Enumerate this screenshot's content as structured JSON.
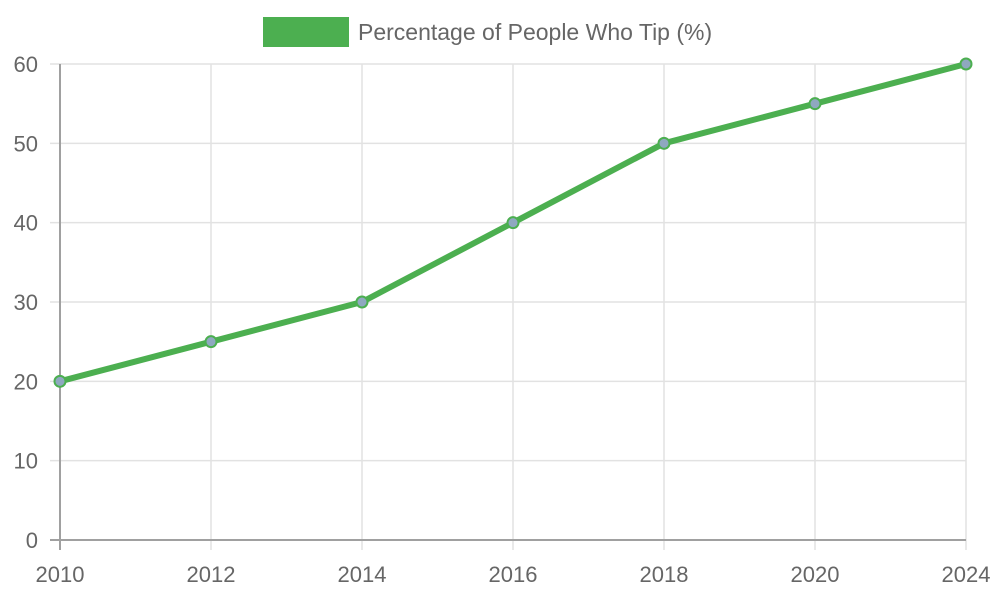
{
  "chart_data": {
    "type": "line",
    "title": "",
    "categories": [
      "2010",
      "2012",
      "2014",
      "2016",
      "2018",
      "2020",
      "2024"
    ],
    "series": [
      {
        "name": "Percentage of People Who Tip (%)",
        "values": [
          20,
          25,
          30,
          40,
          50,
          55,
          60
        ],
        "color": "#4caf50",
        "point_fill": "#8fa8c0"
      }
    ],
    "xlabel": "",
    "ylabel": "",
    "ylim": [
      0,
      60
    ],
    "yticks": [
      0,
      10,
      20,
      30,
      40,
      50,
      60
    ],
    "grid": true,
    "legend_position": "top"
  },
  "legend": {
    "label": "Percentage of People Who Tip (%)",
    "swatch_color": "#4caf50"
  }
}
